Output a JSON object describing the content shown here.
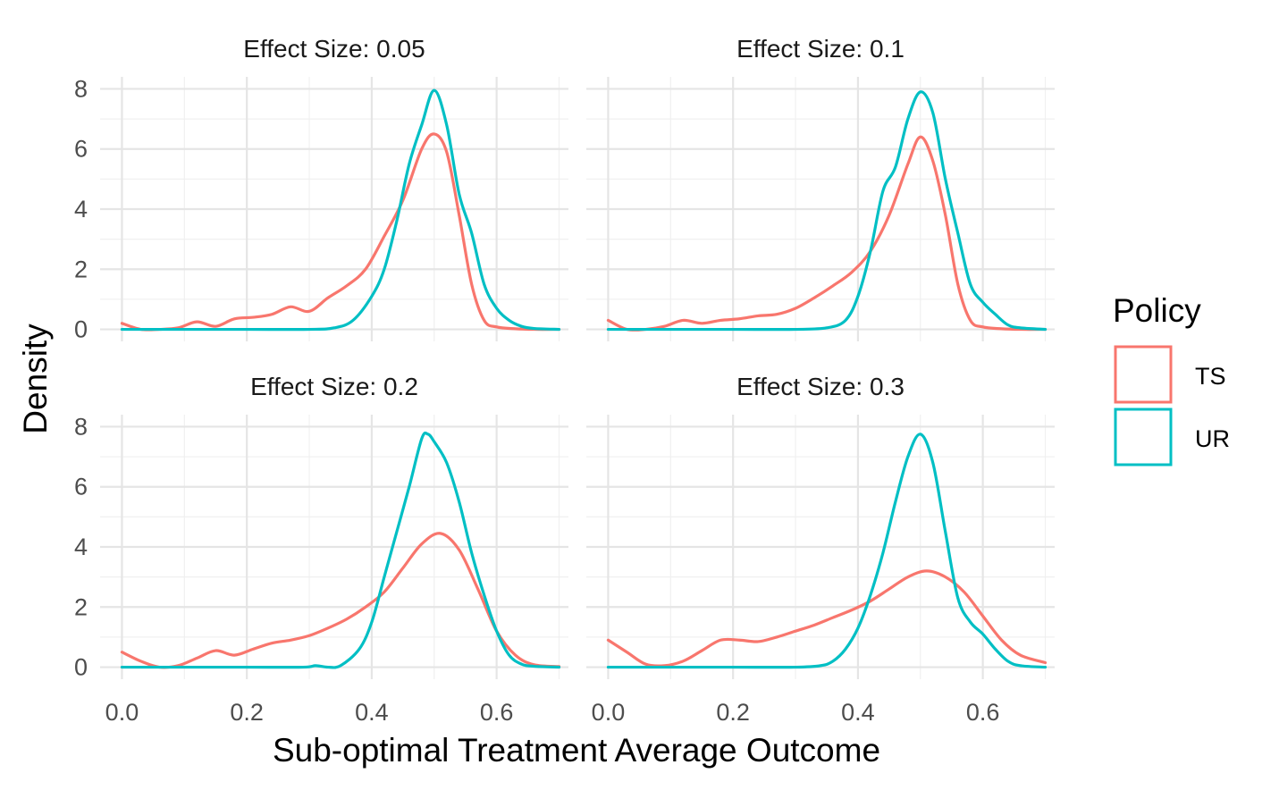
{
  "chart_data": {
    "type": "line",
    "subtype": "density-facets",
    "xlabel": "Sub-optimal Treatment Average Outcome",
    "ylabel": "Density",
    "xlim": [
      -0.035,
      0.715
    ],
    "ylim": [
      -0.4,
      8.4
    ],
    "x_ticks": [
      0.0,
      0.2,
      0.4,
      0.6
    ],
    "x_tick_labels": [
      "0.0",
      "0.2",
      "0.4",
      "0.6"
    ],
    "y_ticks": [
      0,
      2,
      4,
      6,
      8
    ],
    "y_tick_labels": [
      "0",
      "2",
      "4",
      "6",
      "8"
    ],
    "grid": true,
    "legend": {
      "title": "Policy",
      "position": "right",
      "entries": [
        {
          "name": "TS",
          "color": "#F8766D"
        },
        {
          "name": "UR",
          "color": "#00BFC4"
        }
      ]
    },
    "panels": [
      {
        "title": "Effect Size: 0.05",
        "series": [
          {
            "name": "TS",
            "color": "#F8766D",
            "x": [
              0.0,
              0.03,
              0.06,
              0.09,
              0.12,
              0.15,
              0.18,
              0.21,
              0.24,
              0.27,
              0.3,
              0.33,
              0.36,
              0.39,
              0.42,
              0.45,
              0.48,
              0.5,
              0.52,
              0.54,
              0.56,
              0.58,
              0.6,
              0.63,
              0.66,
              0.7
            ],
            "values": [
              0.2,
              0.0,
              0.0,
              0.05,
              0.25,
              0.1,
              0.35,
              0.4,
              0.5,
              0.75,
              0.6,
              1.05,
              1.45,
              2.0,
              3.1,
              4.3,
              6.0,
              6.5,
              5.9,
              3.8,
              1.5,
              0.3,
              0.08,
              0.02,
              0.0,
              0.0
            ]
          },
          {
            "name": "UR",
            "color": "#00BFC4",
            "x": [
              0.0,
              0.1,
              0.2,
              0.3,
              0.34,
              0.37,
              0.4,
              0.42,
              0.44,
              0.46,
              0.48,
              0.5,
              0.52,
              0.54,
              0.56,
              0.58,
              0.6,
              0.62,
              0.64,
              0.66,
              0.7
            ],
            "values": [
              0.0,
              0.0,
              0.0,
              0.0,
              0.05,
              0.3,
              1.1,
              2.0,
              3.6,
              5.5,
              6.8,
              7.95,
              6.8,
              4.5,
              3.2,
              1.5,
              0.7,
              0.3,
              0.1,
              0.03,
              0.0
            ]
          }
        ]
      },
      {
        "title": "Effect Size: 0.1",
        "series": [
          {
            "name": "TS",
            "color": "#F8766D",
            "x": [
              0.0,
              0.03,
              0.06,
              0.09,
              0.12,
              0.15,
              0.18,
              0.21,
              0.24,
              0.27,
              0.3,
              0.33,
              0.36,
              0.39,
              0.42,
              0.45,
              0.48,
              0.5,
              0.52,
              0.54,
              0.56,
              0.58,
              0.6,
              0.63,
              0.66,
              0.7
            ],
            "values": [
              0.3,
              0.0,
              0.0,
              0.1,
              0.3,
              0.2,
              0.3,
              0.35,
              0.45,
              0.5,
              0.7,
              1.05,
              1.45,
              1.9,
              2.6,
              3.8,
              5.5,
              6.4,
              5.6,
              3.8,
              1.5,
              0.3,
              0.08,
              0.02,
              0.0,
              0.0
            ]
          },
          {
            "name": "UR",
            "color": "#00BFC4",
            "x": [
              0.0,
              0.1,
              0.2,
              0.3,
              0.35,
              0.38,
              0.4,
              0.42,
              0.44,
              0.46,
              0.48,
              0.5,
              0.52,
              0.54,
              0.56,
              0.58,
              0.6,
              0.62,
              0.64,
              0.66,
              0.7
            ],
            "values": [
              0.0,
              0.0,
              0.0,
              0.0,
              0.05,
              0.3,
              1.1,
              2.6,
              4.6,
              5.4,
              7.0,
              7.9,
              7.2,
              5.0,
              3.2,
              1.5,
              0.9,
              0.5,
              0.15,
              0.05,
              0.0
            ]
          }
        ]
      },
      {
        "title": "Effect Size: 0.2",
        "series": [
          {
            "name": "TS",
            "color": "#F8766D",
            "x": [
              0.0,
              0.03,
              0.06,
              0.09,
              0.12,
              0.15,
              0.18,
              0.21,
              0.24,
              0.27,
              0.3,
              0.33,
              0.36,
              0.39,
              0.42,
              0.45,
              0.48,
              0.51,
              0.54,
              0.57,
              0.6,
              0.63,
              0.66,
              0.7
            ],
            "values": [
              0.5,
              0.2,
              0.0,
              0.05,
              0.3,
              0.55,
              0.4,
              0.6,
              0.8,
              0.9,
              1.05,
              1.3,
              1.6,
              2.0,
              2.5,
              3.3,
              4.1,
              4.45,
              3.9,
              2.6,
              1.2,
              0.4,
              0.08,
              0.02
            ]
          },
          {
            "name": "UR",
            "color": "#00BFC4",
            "x": [
              0.0,
              0.1,
              0.2,
              0.29,
              0.31,
              0.33,
              0.35,
              0.38,
              0.4,
              0.42,
              0.44,
              0.46,
              0.48,
              0.49,
              0.5,
              0.52,
              0.54,
              0.56,
              0.58,
              0.6,
              0.62,
              0.64,
              0.66,
              0.7
            ],
            "values": [
              0.0,
              0.0,
              0.0,
              0.0,
              0.05,
              0.0,
              0.05,
              0.6,
              1.5,
              3.0,
              4.5,
              6.0,
              7.6,
              7.75,
              7.5,
              6.8,
              5.5,
              3.8,
              2.4,
              1.2,
              0.4,
              0.1,
              0.03,
              0.0
            ]
          }
        ]
      },
      {
        "title": "Effect Size: 0.3",
        "series": [
          {
            "name": "TS",
            "color": "#F8766D",
            "x": [
              0.0,
              0.03,
              0.06,
              0.09,
              0.12,
              0.15,
              0.18,
              0.21,
              0.24,
              0.27,
              0.3,
              0.33,
              0.36,
              0.39,
              0.42,
              0.45,
              0.48,
              0.51,
              0.54,
              0.57,
              0.6,
              0.63,
              0.66,
              0.7
            ],
            "values": [
              0.9,
              0.5,
              0.1,
              0.05,
              0.2,
              0.55,
              0.9,
              0.9,
              0.85,
              1.0,
              1.2,
              1.4,
              1.65,
              1.9,
              2.2,
              2.6,
              3.0,
              3.2,
              3.0,
              2.5,
              1.7,
              0.9,
              0.4,
              0.15
            ]
          },
          {
            "name": "UR",
            "color": "#00BFC4",
            "x": [
              0.0,
              0.1,
              0.2,
              0.3,
              0.34,
              0.36,
              0.38,
              0.4,
              0.42,
              0.44,
              0.46,
              0.48,
              0.5,
              0.52,
              0.54,
              0.56,
              0.58,
              0.6,
              0.62,
              0.64,
              0.66,
              0.7
            ],
            "values": [
              0.0,
              0.0,
              0.0,
              0.0,
              0.05,
              0.2,
              0.6,
              1.3,
              2.4,
              3.8,
              5.5,
              7.0,
              7.75,
              6.8,
              4.5,
              2.3,
              1.5,
              1.1,
              0.6,
              0.2,
              0.05,
              0.0
            ]
          }
        ]
      }
    ]
  }
}
